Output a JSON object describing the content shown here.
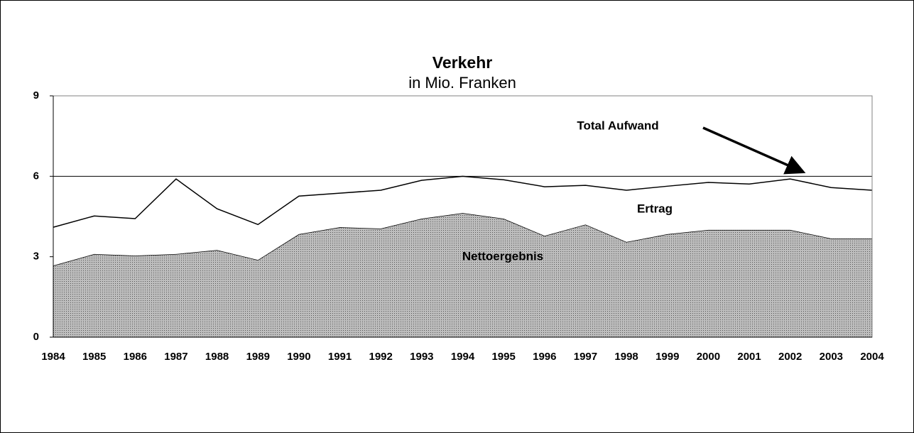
{
  "chart_data": {
    "type": "stacked_area",
    "title": "Verkehr",
    "subtitle": "in Mio. Franken",
    "annotation": "Total Aufwand",
    "categories": [
      "1984",
      "1985",
      "1986",
      "1987",
      "1988",
      "1989",
      "1990",
      "1991",
      "1992",
      "1993",
      "1994",
      "1995",
      "1996",
      "1997",
      "1998",
      "1999",
      "2000",
      "2001",
      "2002",
      "2003",
      "2004"
    ],
    "series": [
      {
        "name": "Nettoergebnis",
        "color": "#bdbdbd",
        "values": [
          2.67,
          3.1,
          3.04,
          3.1,
          3.25,
          2.88,
          3.84,
          4.1,
          4.05,
          4.42,
          4.63,
          4.42,
          3.78,
          4.2,
          3.55,
          3.84,
          4.0,
          4.0,
          4.0,
          3.68,
          3.68
        ]
      },
      {
        "name": "Ertrag",
        "color": "#ffffff",
        "values": [
          1.43,
          1.42,
          1.38,
          2.8,
          1.54,
          1.32,
          1.42,
          1.27,
          1.43,
          1.43,
          1.37,
          1.45,
          1.83,
          1.46,
          1.93,
          1.79,
          1.77,
          1.71,
          1.9,
          1.9,
          1.8
        ]
      }
    ],
    "ylim": [
      0,
      9
    ],
    "yticks": [
      0,
      3,
      6,
      9
    ],
    "grid": true
  }
}
